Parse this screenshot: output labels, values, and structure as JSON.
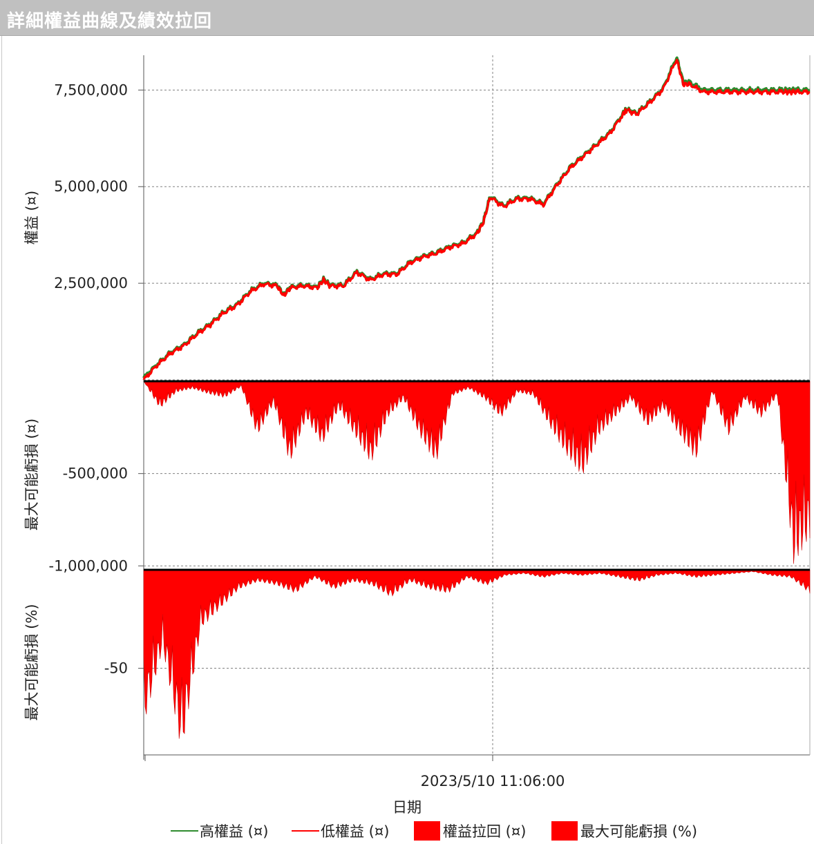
{
  "window": {
    "title": "詳細權益曲線及績效拉回"
  },
  "colors": {
    "high_equity": "#2e8b2e",
    "low_equity": "#ff0000",
    "fill": "#ff0000",
    "grid": "#808080",
    "zero": "#000000"
  },
  "legend": [
    {
      "label": "高權益 (¤)",
      "kind": "line",
      "color": "#2e8b2e"
    },
    {
      "label": "低權益 (¤)",
      "kind": "line",
      "color": "#ff0000"
    },
    {
      "label": "權益拉回 (¤)",
      "kind": "box",
      "color": "#ff0000"
    },
    {
      "label": "最大可能虧損 (%)",
      "kind": "box",
      "color": "#ff0000"
    }
  ],
  "chart_data": [
    {
      "type": "line",
      "ylabel": "權益 (¤)",
      "ylim": [
        0,
        8400000
      ],
      "yticks": [
        {
          "value": 7500000,
          "label": "7,500,000"
        },
        {
          "value": 5000000,
          "label": "5,000,000"
        },
        {
          "value": 2500000,
          "label": "2,500,000"
        }
      ],
      "x": [
        0,
        0.02,
        0.04,
        0.06,
        0.08,
        0.1,
        0.12,
        0.14,
        0.16,
        0.18,
        0.2,
        0.21,
        0.22,
        0.24,
        0.26,
        0.27,
        0.28,
        0.3,
        0.32,
        0.34,
        0.36,
        0.38,
        0.4,
        0.42,
        0.44,
        0.46,
        0.48,
        0.5,
        0.51,
        0.52,
        0.54,
        0.56,
        0.58,
        0.6,
        0.62,
        0.64,
        0.66,
        0.68,
        0.7,
        0.72,
        0.725,
        0.74,
        0.76,
        0.78,
        0.8,
        0.81,
        0.82,
        0.84,
        0.86,
        0.88,
        0.9,
        0.92,
        0.94,
        0.96,
        0.97,
        0.98,
        1.0
      ],
      "series": [
        {
          "name": "高權益 (¤)",
          "values": [
            50000,
            400000,
            700000,
            900000,
            1200000,
            1450000,
            1750000,
            1950000,
            2300000,
            2500000,
            2450000,
            2200000,
            2400000,
            2450000,
            2400000,
            2600000,
            2450000,
            2450000,
            2800000,
            2600000,
            2750000,
            2750000,
            3050000,
            3200000,
            3300000,
            3450000,
            3550000,
            3800000,
            4100000,
            4750000,
            4500000,
            4700000,
            4700000,
            4550000,
            5050000,
            5500000,
            5800000,
            6100000,
            6400000,
            6900000,
            7000000,
            6900000,
            7200000,
            7550000,
            8350000,
            7700000,
            7700000,
            7500000,
            7500000,
            7500000,
            7500000,
            7500000,
            7500000,
            7500000,
            7500000,
            7500000,
            7500000
          ]
        },
        {
          "name": "低權益 (¤)",
          "values": [
            0,
            380000,
            680000,
            880000,
            1180000,
            1430000,
            1730000,
            1930000,
            2280000,
            2480000,
            2430000,
            2180000,
            2380000,
            2430000,
            2380000,
            2580000,
            2430000,
            2430000,
            2780000,
            2580000,
            2730000,
            2730000,
            3030000,
            3180000,
            3280000,
            3430000,
            3530000,
            3780000,
            4080000,
            4730000,
            4480000,
            4680000,
            4680000,
            4530000,
            5030000,
            5480000,
            5780000,
            6080000,
            6380000,
            6880000,
            6980000,
            6880000,
            7180000,
            7530000,
            8300000,
            7650000,
            7650000,
            7450000,
            7450000,
            7450000,
            7450000,
            7450000,
            7450000,
            7450000,
            7450000,
            7450000,
            7450000
          ]
        }
      ]
    },
    {
      "type": "area",
      "ylabel": "最大可能虧損 (¤)",
      "ylim": [
        -1010000,
        0
      ],
      "yticks": [
        {
          "value": -500000,
          "label": "-500,000"
        },
        {
          "value": -1000000,
          "label": "-1,000,000"
        }
      ],
      "series": [
        {
          "name": "權益拉回 (¤)",
          "values": [
            0,
            -150000,
            -60000,
            -40000,
            -70000,
            -90000,
            -30000,
            -300000,
            -120000,
            -450000,
            -200000,
            -350000,
            -150000,
            -300000,
            -450000,
            -200000,
            -100000,
            -300000,
            -450000,
            -80000,
            -40000,
            -100000,
            -200000,
            -60000,
            -80000,
            -250000,
            -400000,
            -520000,
            -300000,
            -200000,
            -100000,
            -250000,
            -150000,
            -300000,
            -430000,
            -60000,
            -300000,
            -100000,
            -200000,
            -80000,
            -1000000,
            -850000
          ]
        }
      ]
    },
    {
      "type": "area",
      "ylabel": "最大可能虧損 (%)",
      "xlabel": "日期",
      "ylim": [
        -94,
        0
      ],
      "yticks": [
        {
          "value": -50,
          "label": "-50"
        }
      ],
      "xticks": [
        {
          "label": "2023/5/10 11:06:00"
        }
      ],
      "series": [
        {
          "name": "最大可能虧損 (%)",
          "values": [
            -80,
            -40,
            -94,
            -30,
            -20,
            -10,
            -6,
            -8,
            -12,
            -4,
            -10,
            -6,
            -8,
            -14,
            -6,
            -10,
            -12,
            -4,
            -8,
            -3,
            -2,
            -4,
            -2,
            -3,
            -2,
            -4,
            -6,
            -3,
            -2,
            -4,
            -3,
            -2,
            -1,
            -3,
            -4,
            -12
          ]
        }
      ]
    }
  ]
}
